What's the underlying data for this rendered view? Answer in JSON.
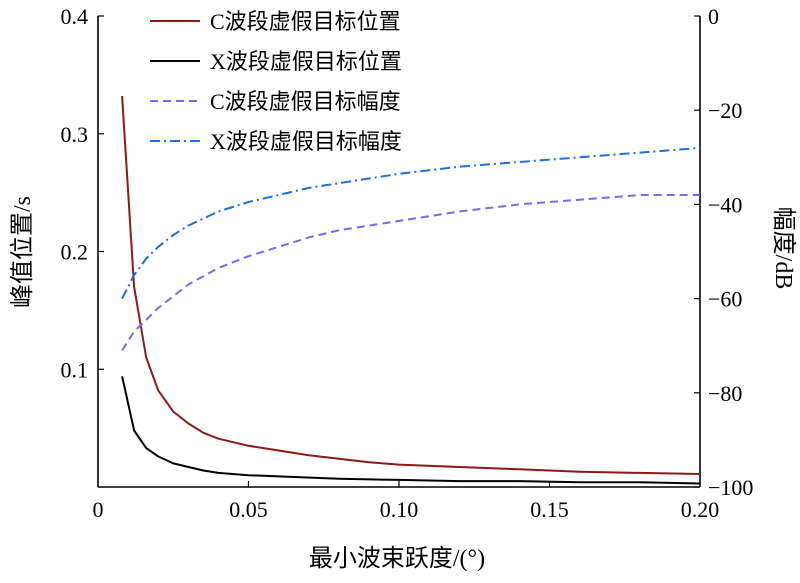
{
  "chart_data": {
    "type": "line",
    "xlabel": "最小波束跃度/(°)",
    "ylabel_left": "峰值位置/s",
    "ylabel_right": "幅度/dB",
    "xlim": [
      0,
      0.2
    ],
    "ylim_left": [
      0,
      0.4
    ],
    "ylim_right": [
      -100,
      0
    ],
    "x_ticks": [
      0,
      0.05,
      0.1,
      0.15,
      0.2
    ],
    "x_tick_labels": [
      "0",
      "0.05",
      "0.10",
      "0.15",
      "0.20"
    ],
    "y_left_ticks": [
      0.1,
      0.2,
      0.3,
      0.4
    ],
    "y_left_tick_labels": [
      "0.1",
      "0.2",
      "0.3",
      "0.4"
    ],
    "y_right_ticks": [
      0,
      -20,
      -40,
      -60,
      -80,
      -100
    ],
    "y_right_tick_labels": [
      "0",
      "−20",
      "−40",
      "−60",
      "−80",
      "−100"
    ],
    "legend_position": "top-center",
    "grid": false,
    "series": [
      {
        "name": "C波段虚假目标位置",
        "axis": "left",
        "color": "#8b1a1a",
        "dash": "solid",
        "x": [
          0.008,
          0.012,
          0.016,
          0.02,
          0.025,
          0.03,
          0.035,
          0.04,
          0.05,
          0.06,
          0.07,
          0.08,
          0.09,
          0.1,
          0.12,
          0.14,
          0.16,
          0.18,
          0.2
        ],
        "y": [
          0.332,
          0.17,
          0.11,
          0.082,
          0.064,
          0.054,
          0.046,
          0.041,
          0.035,
          0.031,
          0.027,
          0.024,
          0.021,
          0.019,
          0.017,
          0.015,
          0.013,
          0.012,
          0.011
        ]
      },
      {
        "name": "X波段虚假目标位置",
        "axis": "left",
        "color": "#000000",
        "dash": "solid",
        "x": [
          0.008,
          0.012,
          0.016,
          0.02,
          0.025,
          0.03,
          0.035,
          0.04,
          0.05,
          0.06,
          0.08,
          0.1,
          0.12,
          0.14,
          0.16,
          0.18,
          0.2
        ],
        "y": [
          0.094,
          0.048,
          0.033,
          0.026,
          0.02,
          0.017,
          0.014,
          0.012,
          0.01,
          0.009,
          0.007,
          0.006,
          0.005,
          0.005,
          0.004,
          0.004,
          0.003
        ]
      },
      {
        "name": "C波段虚假目标幅度",
        "axis": "right",
        "color": "#7b68ee",
        "dash": "dashed",
        "x": [
          0.008,
          0.012,
          0.016,
          0.02,
          0.025,
          0.03,
          0.04,
          0.05,
          0.06,
          0.07,
          0.08,
          0.09,
          0.1,
          0.12,
          0.14,
          0.16,
          0.18,
          0.2
        ],
        "y": [
          -71,
          -67,
          -64.5,
          -62,
          -59.5,
          -57,
          -53.5,
          -51,
          -49,
          -47,
          -45.5,
          -44.5,
          -43.5,
          -41.5,
          -40,
          -39,
          -38,
          -38
        ]
      },
      {
        "name": "X波段虚假目标幅度",
        "axis": "right",
        "color": "#1f6fe0",
        "dash": "dashdot",
        "x": [
          0.008,
          0.012,
          0.016,
          0.02,
          0.025,
          0.03,
          0.04,
          0.05,
          0.06,
          0.07,
          0.08,
          0.09,
          0.1,
          0.12,
          0.14,
          0.16,
          0.18,
          0.2
        ],
        "y": [
          -60,
          -55,
          -51.5,
          -49,
          -46.5,
          -44.5,
          -41.5,
          -39.5,
          -38,
          -36.5,
          -35.5,
          -34.5,
          -33.5,
          -32,
          -31,
          -30,
          -29,
          -28
        ]
      }
    ]
  }
}
